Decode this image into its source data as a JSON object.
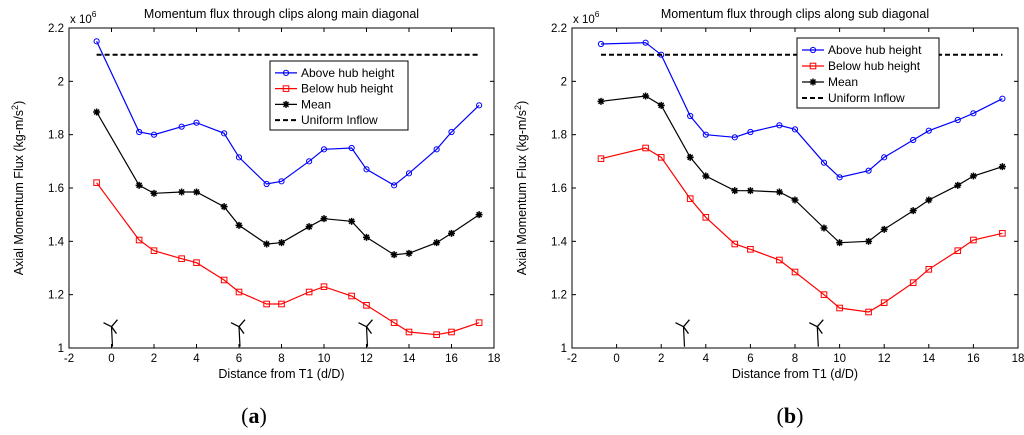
{
  "chart_data": [
    {
      "type": "line",
      "title": "Momentum flux through clips along main diagonal",
      "xlabel": "Distance from T1 (d/D)",
      "ylabel": "Axial Momentum Flux (kg-m/s",
      "ylabel_sup": "2",
      "ylabel_close": ")",
      "xlim": [
        -2,
        18
      ],
      "ylim": [
        1.0,
        2.2
      ],
      "y_multiplier": "x 10",
      "y_multiplier_exp": "6",
      "xticks": [
        -2,
        0,
        2,
        4,
        6,
        8,
        10,
        12,
        14,
        16,
        18
      ],
      "xtick_labels": [
        "-2",
        "0",
        "2",
        "4",
        "6",
        "8",
        "10",
        "12",
        "14",
        "16",
        "18"
      ],
      "yticks": [
        1.0,
        1.2,
        1.4,
        1.6,
        1.8,
        2.0,
        2.2
      ],
      "ytick_labels": [
        "1",
        "1.2",
        "1.4",
        "1.6",
        "1.8",
        "2",
        "2.2"
      ],
      "legend_position": "upper-right",
      "turbine_x": [
        0,
        6,
        12
      ],
      "turbine_y": 1.08,
      "series": [
        {
          "name": "Above hub height",
          "color": "#0000ff",
          "marker": "circle",
          "x": [
            -0.7,
            1.3,
            2.0,
            3.3,
            4.0,
            5.3,
            6.0,
            7.3,
            8.0,
            9.3,
            10.0,
            11.3,
            12.0,
            13.3,
            14.0,
            15.3,
            16.0,
            17.3
          ],
          "values": [
            2.15,
            1.81,
            1.8,
            1.83,
            1.845,
            1.805,
            1.715,
            1.615,
            1.625,
            1.7,
            1.745,
            1.75,
            1.67,
            1.61,
            1.655,
            1.745,
            1.81,
            1.91
          ]
        },
        {
          "name": "Below hub height",
          "color": "#ff0000",
          "marker": "square",
          "x": [
            -0.7,
            1.3,
            2.0,
            3.3,
            4.0,
            5.3,
            6.0,
            7.3,
            8.0,
            9.3,
            10.0,
            11.3,
            12.0,
            13.3,
            14.0,
            15.3,
            16.0,
            17.3
          ],
          "values": [
            1.62,
            1.405,
            1.365,
            1.335,
            1.32,
            1.255,
            1.21,
            1.165,
            1.165,
            1.21,
            1.23,
            1.195,
            1.16,
            1.095,
            1.06,
            1.05,
            1.06,
            1.095
          ]
        },
        {
          "name": "Mean",
          "color": "#000000",
          "marker": "star",
          "x": [
            -0.7,
            1.3,
            2.0,
            3.3,
            4.0,
            5.3,
            6.0,
            7.3,
            8.0,
            9.3,
            10.0,
            11.3,
            12.0,
            13.3,
            14.0,
            15.3,
            16.0,
            17.3
          ],
          "values": [
            1.885,
            1.61,
            1.58,
            1.585,
            1.585,
            1.53,
            1.46,
            1.39,
            1.395,
            1.455,
            1.485,
            1.475,
            1.415,
            1.35,
            1.355,
            1.395,
            1.43,
            1.5
          ]
        },
        {
          "name": "Uniform Inflow",
          "color": "#000000",
          "marker": "none",
          "dashed": true,
          "x": [
            -0.7,
            17.3
          ],
          "values": [
            2.1,
            2.1
          ]
        }
      ]
    },
    {
      "type": "line",
      "title": "Momentum flux through clips along sub diagonal",
      "xlabel": "Distance from T1 (d/D)",
      "ylabel": "Axial Momentum Flux (kg-m/s",
      "ylabel_sup": "2",
      "ylabel_close": ")",
      "xlim": [
        -2,
        18
      ],
      "ylim": [
        1.0,
        2.2
      ],
      "y_multiplier": "x 10",
      "y_multiplier_exp": "6",
      "xticks": [
        -2,
        0,
        2,
        4,
        6,
        8,
        10,
        12,
        14,
        16,
        18
      ],
      "xtick_labels": [
        "-2",
        "0",
        "2",
        "4",
        "6",
        "8",
        "10",
        "12",
        "14",
        "16",
        "18"
      ],
      "yticks": [
        1.0,
        1.2,
        1.4,
        1.6,
        1.8,
        2.0,
        2.2
      ],
      "ytick_labels": [
        "1",
        "1.2",
        "1.4",
        "1.6",
        "1.8",
        "2",
        "2.2"
      ],
      "legend_position": "upper-right",
      "turbine_x": [
        3,
        9
      ],
      "turbine_y": 1.08,
      "series": [
        {
          "name": "Above hub height",
          "color": "#0000ff",
          "marker": "circle",
          "x": [
            -0.7,
            1.3,
            2.0,
            3.3,
            4.0,
            5.3,
            6.0,
            7.3,
            8.0,
            9.3,
            10.0,
            11.3,
            12.0,
            13.3,
            14.0,
            15.3,
            16.0,
            17.3
          ],
          "values": [
            2.14,
            2.145,
            2.1,
            1.87,
            1.8,
            1.79,
            1.81,
            1.835,
            1.82,
            1.695,
            1.64,
            1.665,
            1.715,
            1.78,
            1.815,
            1.855,
            1.88,
            1.935
          ]
        },
        {
          "name": "Below hub height",
          "color": "#ff0000",
          "marker": "square",
          "x": [
            -0.7,
            1.3,
            2.0,
            3.3,
            4.0,
            5.3,
            6.0,
            7.3,
            8.0,
            9.3,
            10.0,
            11.3,
            12.0,
            13.3,
            14.0,
            15.3,
            16.0,
            17.3
          ],
          "values": [
            1.71,
            1.75,
            1.715,
            1.56,
            1.49,
            1.39,
            1.37,
            1.33,
            1.285,
            1.2,
            1.15,
            1.135,
            1.17,
            1.245,
            1.295,
            1.365,
            1.405,
            1.43
          ]
        },
        {
          "name": "Mean",
          "color": "#000000",
          "marker": "star",
          "x": [
            -0.7,
            1.3,
            2.0,
            3.3,
            4.0,
            5.3,
            6.0,
            7.3,
            8.0,
            9.3,
            10.0,
            11.3,
            12.0,
            13.3,
            14.0,
            15.3,
            16.0,
            17.3
          ],
          "values": [
            1.925,
            1.945,
            1.91,
            1.715,
            1.645,
            1.59,
            1.59,
            1.585,
            1.555,
            1.45,
            1.395,
            1.4,
            1.445,
            1.515,
            1.555,
            1.61,
            1.645,
            1.68
          ]
        },
        {
          "name": "Uniform Inflow",
          "color": "#000000",
          "marker": "none",
          "dashed": true,
          "x": [
            -0.7,
            17.3
          ],
          "values": [
            2.1,
            2.1
          ]
        }
      ]
    }
  ],
  "captions": [
    {
      "open": "(",
      "letter": "a",
      "close": ")"
    },
    {
      "open": "(",
      "letter": "b",
      "close": ")"
    }
  ]
}
